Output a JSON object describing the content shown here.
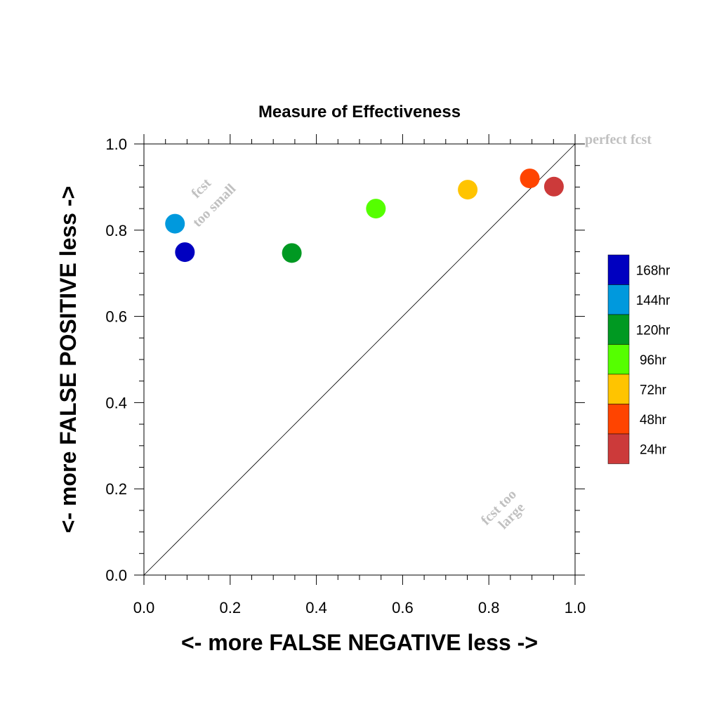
{
  "chart_data": {
    "type": "scatter",
    "title": "Measure of Effectiveness",
    "xlabel": "<- more   FALSE NEGATIVE   less ->",
    "ylabel": "<- more   FALSE POSITIVE   less ->",
    "xlim": [
      0.0,
      1.0
    ],
    "ylim": [
      0.0,
      1.0
    ],
    "xticks": [
      "0.0",
      "0.2",
      "0.4",
      "0.6",
      "0.8",
      "1.0"
    ],
    "yticks": [
      "0.0",
      "0.2",
      "0.4",
      "0.6",
      "0.8",
      "1.0"
    ],
    "grid": false,
    "legend_position": "right",
    "reference_line": {
      "from": [
        0.0,
        0.0
      ],
      "to": [
        1.0,
        1.0
      ]
    },
    "annotations": [
      {
        "text": "perfect fcst",
        "at": [
          1.0,
          1.0
        ]
      },
      {
        "text": "fcst",
        "at": [
          0.14,
          0.89
        ]
      },
      {
        "text": "too small",
        "at": [
          0.17,
          0.85
        ]
      },
      {
        "text": "fcst too",
        "at": [
          0.83,
          0.15
        ]
      },
      {
        "text": "large",
        "at": [
          0.86,
          0.13
        ]
      }
    ],
    "annotation_color": "#c0c0c0",
    "series": [
      {
        "name": "168hr",
        "color": "#0000c0",
        "x": 0.095,
        "y": 0.749
      },
      {
        "name": "144hr",
        "color": "#0099dd",
        "x": 0.072,
        "y": 0.815
      },
      {
        "name": "120hr",
        "color": "#009922",
        "x": 0.343,
        "y": 0.747
      },
      {
        "name": "96hr",
        "color": "#55ff00",
        "x": 0.538,
        "y": 0.85
      },
      {
        "name": "72hr",
        "color": "#ffc400",
        "x": 0.751,
        "y": 0.894
      },
      {
        "name": "48hr",
        "color": "#ff4400",
        "x": 0.895,
        "y": 0.92
      },
      {
        "name": "24hr",
        "color": "#cc3a3a",
        "x": 0.951,
        "y": 0.901
      }
    ]
  }
}
